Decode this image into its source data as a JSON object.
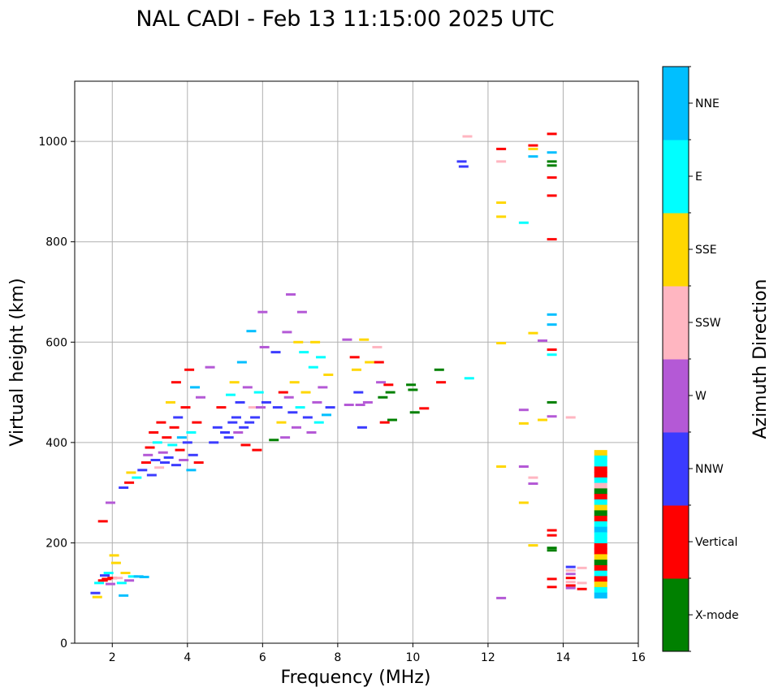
{
  "chart_data": {
    "type": "scatter",
    "title": "NAL CADI - Feb 13 11:15:00 2025 UTC",
    "xlabel": "Frequency (MHz)",
    "ylabel": "Virtual height (km)",
    "xlim": [
      1,
      16
    ],
    "ylim": [
      0,
      1120
    ],
    "xticks": [
      2,
      4,
      6,
      8,
      10,
      12,
      14,
      16
    ],
    "xtick_labels": [
      "2",
      "4",
      "6",
      "8",
      "10",
      "12",
      "14",
      "16"
    ],
    "yticks": [
      0,
      200,
      400,
      600,
      800,
      1000
    ],
    "ytick_labels": [
      "0",
      "200",
      "400",
      "600",
      "800",
      "1000"
    ],
    "grid": true,
    "colorbar": {
      "label": "Azimuth Direction",
      "categories": [
        {
          "name": "X-mode",
          "color": "#008000"
        },
        {
          "name": "Vertical",
          "color": "#ff0000"
        },
        {
          "name": "NNW",
          "color": "#3b3bff"
        },
        {
          "name": "W",
          "color": "#b459d6"
        },
        {
          "name": "SSW",
          "color": "#ffb6c1"
        },
        {
          "name": "SSE",
          "color": "#ffd700"
        },
        {
          "name": "E",
          "color": "#00ffff"
        },
        {
          "name": "NNE",
          "color": "#00bfff"
        }
      ]
    },
    "echoes": [
      {
        "f": 1.55,
        "h": 100,
        "dir": "NNW"
      },
      {
        "f": 1.6,
        "h": 92,
        "dir": "SSE"
      },
      {
        "f": 1.65,
        "h": 120,
        "dir": "E"
      },
      {
        "f": 1.75,
        "h": 125,
        "dir": "Vertical"
      },
      {
        "f": 1.8,
        "h": 135,
        "dir": "NNW"
      },
      {
        "f": 1.85,
        "h": 128,
        "dir": "Vertical"
      },
      {
        "f": 1.9,
        "h": 140,
        "dir": "E"
      },
      {
        "f": 1.95,
        "h": 118,
        "dir": "W"
      },
      {
        "f": 2.0,
        "h": 130,
        "dir": "Vertical"
      },
      {
        "f": 2.05,
        "h": 175,
        "dir": "SSE"
      },
      {
        "f": 2.1,
        "h": 160,
        "dir": "SSE"
      },
      {
        "f": 2.15,
        "h": 130,
        "dir": "SSW"
      },
      {
        "f": 2.25,
        "h": 120,
        "dir": "E"
      },
      {
        "f": 2.3,
        "h": 95,
        "dir": "NNE"
      },
      {
        "f": 2.35,
        "h": 140,
        "dir": "SSE"
      },
      {
        "f": 2.45,
        "h": 125,
        "dir": "W"
      },
      {
        "f": 2.55,
        "h": 133,
        "dir": "E"
      },
      {
        "f": 2.7,
        "h": 133,
        "dir": "NNE"
      },
      {
        "f": 2.85,
        "h": 132,
        "dir": "NNE"
      },
      {
        "f": 1.75,
        "h": 243,
        "dir": "Vertical"
      },
      {
        "f": 1.95,
        "h": 280,
        "dir": "W"
      },
      {
        "f": 2.3,
        "h": 310,
        "dir": "NNW"
      },
      {
        "f": 2.45,
        "h": 320,
        "dir": "Vertical"
      },
      {
        "f": 2.5,
        "h": 340,
        "dir": "SSE"
      },
      {
        "f": 2.65,
        "h": 330,
        "dir": "E"
      },
      {
        "f": 2.8,
        "h": 345,
        "dir": "NNW"
      },
      {
        "f": 2.9,
        "h": 360,
        "dir": "Vertical"
      },
      {
        "f": 2.95,
        "h": 375,
        "dir": "W"
      },
      {
        "f": 3.0,
        "h": 390,
        "dir": "Vertical"
      },
      {
        "f": 3.05,
        "h": 335,
        "dir": "NNW"
      },
      {
        "f": 3.1,
        "h": 420,
        "dir": "Vertical"
      },
      {
        "f": 3.15,
        "h": 365,
        "dir": "NNW"
      },
      {
        "f": 3.2,
        "h": 400,
        "dir": "E"
      },
      {
        "f": 3.25,
        "h": 350,
        "dir": "SSW"
      },
      {
        "f": 3.3,
        "h": 440,
        "dir": "Vertical"
      },
      {
        "f": 3.35,
        "h": 380,
        "dir": "W"
      },
      {
        "f": 3.4,
        "h": 360,
        "dir": "NNW"
      },
      {
        "f": 3.45,
        "h": 410,
        "dir": "Vertical"
      },
      {
        "f": 3.5,
        "h": 370,
        "dir": "NNW"
      },
      {
        "f": 3.55,
        "h": 480,
        "dir": "SSE"
      },
      {
        "f": 3.6,
        "h": 395,
        "dir": "E"
      },
      {
        "f": 3.65,
        "h": 430,
        "dir": "Vertical"
      },
      {
        "f": 3.7,
        "h": 355,
        "dir": "NNW"
      },
      {
        "f": 3.75,
        "h": 450,
        "dir": "NNW"
      },
      {
        "f": 3.8,
        "h": 385,
        "dir": "Vertical"
      },
      {
        "f": 3.85,
        "h": 410,
        "dir": "NNE"
      },
      {
        "f": 3.9,
        "h": 365,
        "dir": "W"
      },
      {
        "f": 3.95,
        "h": 470,
        "dir": "Vertical"
      },
      {
        "f": 4.0,
        "h": 400,
        "dir": "NNW"
      },
      {
        "f": 4.05,
        "h": 545,
        "dir": "Vertical"
      },
      {
        "f": 4.1,
        "h": 420,
        "dir": "E"
      },
      {
        "f": 4.15,
        "h": 375,
        "dir": "NNW"
      },
      {
        "f": 4.2,
        "h": 510,
        "dir": "NNE"
      },
      {
        "f": 4.25,
        "h": 440,
        "dir": "Vertical"
      },
      {
        "f": 4.3,
        "h": 360,
        "dir": "Vertical"
      },
      {
        "f": 4.35,
        "h": 490,
        "dir": "W"
      },
      {
        "f": 3.7,
        "h": 520,
        "dir": "Vertical"
      },
      {
        "f": 4.1,
        "h": 345,
        "dir": "NNE"
      },
      {
        "f": 4.6,
        "h": 550,
        "dir": "W"
      },
      {
        "f": 4.7,
        "h": 400,
        "dir": "NNW"
      },
      {
        "f": 4.8,
        "h": 430,
        "dir": "NNW"
      },
      {
        "f": 4.9,
        "h": 470,
        "dir": "Vertical"
      },
      {
        "f": 5.0,
        "h": 420,
        "dir": "NNW"
      },
      {
        "f": 5.1,
        "h": 410,
        "dir": "NNW"
      },
      {
        "f": 5.15,
        "h": 495,
        "dir": "E"
      },
      {
        "f": 5.2,
        "h": 440,
        "dir": "NNW"
      },
      {
        "f": 5.25,
        "h": 520,
        "dir": "SSE"
      },
      {
        "f": 5.3,
        "h": 450,
        "dir": "NNW"
      },
      {
        "f": 5.35,
        "h": 420,
        "dir": "W"
      },
      {
        "f": 5.4,
        "h": 480,
        "dir": "NNW"
      },
      {
        "f": 5.45,
        "h": 560,
        "dir": "NNE"
      },
      {
        "f": 5.5,
        "h": 430,
        "dir": "NNW"
      },
      {
        "f": 5.55,
        "h": 395,
        "dir": "Vertical"
      },
      {
        "f": 5.6,
        "h": 510,
        "dir": "W"
      },
      {
        "f": 5.65,
        "h": 440,
        "dir": "NNW"
      },
      {
        "f": 5.7,
        "h": 622,
        "dir": "NNE"
      },
      {
        "f": 5.75,
        "h": 470,
        "dir": "SSW"
      },
      {
        "f": 5.8,
        "h": 450,
        "dir": "NNW"
      },
      {
        "f": 5.85,
        "h": 385,
        "dir": "Vertical"
      },
      {
        "f": 5.9,
        "h": 500,
        "dir": "E"
      },
      {
        "f": 5.95,
        "h": 470,
        "dir": "W"
      },
      {
        "f": 6.0,
        "h": 660,
        "dir": "W"
      },
      {
        "f": 6.05,
        "h": 590,
        "dir": "W"
      },
      {
        "f": 6.1,
        "h": 480,
        "dir": "NNW"
      },
      {
        "f": 6.3,
        "h": 405,
        "dir": "X-mode"
      },
      {
        "f": 6.35,
        "h": 580,
        "dir": "NNW"
      },
      {
        "f": 6.4,
        "h": 470,
        "dir": "NNW"
      },
      {
        "f": 6.5,
        "h": 440,
        "dir": "SSE"
      },
      {
        "f": 6.55,
        "h": 500,
        "dir": "Vertical"
      },
      {
        "f": 6.6,
        "h": 410,
        "dir": "W"
      },
      {
        "f": 6.65,
        "h": 620,
        "dir": "W"
      },
      {
        "f": 6.7,
        "h": 490,
        "dir": "W"
      },
      {
        "f": 6.75,
        "h": 695,
        "dir": "W"
      },
      {
        "f": 6.8,
        "h": 460,
        "dir": "NNW"
      },
      {
        "f": 6.85,
        "h": 520,
        "dir": "SSE"
      },
      {
        "f": 6.9,
        "h": 430,
        "dir": "W"
      },
      {
        "f": 6.95,
        "h": 600,
        "dir": "SSE"
      },
      {
        "f": 7.0,
        "h": 470,
        "dir": "E"
      },
      {
        "f": 7.05,
        "h": 660,
        "dir": "W"
      },
      {
        "f": 7.1,
        "h": 580,
        "dir": "E"
      },
      {
        "f": 7.15,
        "h": 500,
        "dir": "SSE"
      },
      {
        "f": 7.2,
        "h": 450,
        "dir": "NNW"
      },
      {
        "f": 7.3,
        "h": 420,
        "dir": "W"
      },
      {
        "f": 7.35,
        "h": 550,
        "dir": "E"
      },
      {
        "f": 7.4,
        "h": 600,
        "dir": "SSE"
      },
      {
        "f": 7.45,
        "h": 480,
        "dir": "W"
      },
      {
        "f": 7.5,
        "h": 440,
        "dir": "E"
      },
      {
        "f": 7.55,
        "h": 570,
        "dir": "E"
      },
      {
        "f": 7.6,
        "h": 510,
        "dir": "W"
      },
      {
        "f": 7.7,
        "h": 455,
        "dir": "NNE"
      },
      {
        "f": 7.75,
        "h": 535,
        "dir": "SSE"
      },
      {
        "f": 7.8,
        "h": 470,
        "dir": "NNW"
      },
      {
        "f": 8.25,
        "h": 605,
        "dir": "W"
      },
      {
        "f": 8.3,
        "h": 475,
        "dir": "W"
      },
      {
        "f": 8.45,
        "h": 570,
        "dir": "Vertical"
      },
      {
        "f": 8.5,
        "h": 545,
        "dir": "SSE"
      },
      {
        "f": 8.55,
        "h": 500,
        "dir": "NNW"
      },
      {
        "f": 8.6,
        "h": 475,
        "dir": "W"
      },
      {
        "f": 8.65,
        "h": 430,
        "dir": "NNW"
      },
      {
        "f": 8.7,
        "h": 605,
        "dir": "SSE"
      },
      {
        "f": 8.8,
        "h": 480,
        "dir": "W"
      },
      {
        "f": 8.85,
        "h": 560,
        "dir": "SSE"
      },
      {
        "f": 9.05,
        "h": 590,
        "dir": "SSW"
      },
      {
        "f": 9.1,
        "h": 560,
        "dir": "Vertical"
      },
      {
        "f": 9.15,
        "h": 520,
        "dir": "W"
      },
      {
        "f": 9.2,
        "h": 490,
        "dir": "X-mode"
      },
      {
        "f": 9.25,
        "h": 440,
        "dir": "Vertical"
      },
      {
        "f": 9.35,
        "h": 515,
        "dir": "Vertical"
      },
      {
        "f": 9.4,
        "h": 500,
        "dir": "X-mode"
      },
      {
        "f": 9.45,
        "h": 445,
        "dir": "X-mode"
      },
      {
        "f": 9.95,
        "h": 515,
        "dir": "X-mode"
      },
      {
        "f": 10.0,
        "h": 505,
        "dir": "X-mode"
      },
      {
        "f": 10.05,
        "h": 460,
        "dir": "X-mode"
      },
      {
        "f": 10.3,
        "h": 468,
        "dir": "Vertical"
      },
      {
        "f": 10.7,
        "h": 545,
        "dir": "X-mode"
      },
      {
        "f": 10.75,
        "h": 520,
        "dir": "Vertical"
      },
      {
        "f": 11.3,
        "h": 960,
        "dir": "NNW"
      },
      {
        "f": 11.35,
        "h": 950,
        "dir": "NNW"
      },
      {
        "f": 11.45,
        "h": 1010,
        "dir": "SSW"
      },
      {
        "f": 11.5,
        "h": 528,
        "dir": "E"
      },
      {
        "f": 12.35,
        "h": 985,
        "dir": "Vertical"
      },
      {
        "f": 12.35,
        "h": 960,
        "dir": "SSW"
      },
      {
        "f": 12.35,
        "h": 878,
        "dir": "SSE"
      },
      {
        "f": 12.35,
        "h": 850,
        "dir": "SSE"
      },
      {
        "f": 12.35,
        "h": 598,
        "dir": "SSE"
      },
      {
        "f": 12.35,
        "h": 352,
        "dir": "SSE"
      },
      {
        "f": 12.35,
        "h": 90,
        "dir": "W"
      },
      {
        "f": 12.95,
        "h": 838,
        "dir": "E"
      },
      {
        "f": 12.95,
        "h": 465,
        "dir": "W"
      },
      {
        "f": 12.95,
        "h": 438,
        "dir": "SSE"
      },
      {
        "f": 12.95,
        "h": 352,
        "dir": "W"
      },
      {
        "f": 12.95,
        "h": 280,
        "dir": "SSE"
      },
      {
        "f": 13.2,
        "h": 992,
        "dir": "Vertical"
      },
      {
        "f": 13.2,
        "h": 985,
        "dir": "SSE"
      },
      {
        "f": 13.2,
        "h": 970,
        "dir": "NNE"
      },
      {
        "f": 13.2,
        "h": 618,
        "dir": "SSE"
      },
      {
        "f": 13.2,
        "h": 330,
        "dir": "SSW"
      },
      {
        "f": 13.2,
        "h": 318,
        "dir": "W"
      },
      {
        "f": 13.2,
        "h": 195,
        "dir": "SSE"
      },
      {
        "f": 13.45,
        "h": 603,
        "dir": "W"
      },
      {
        "f": 13.45,
        "h": 445,
        "dir": "SSE"
      },
      {
        "f": 13.7,
        "h": 1015,
        "dir": "Vertical"
      },
      {
        "f": 13.7,
        "h": 978,
        "dir": "NNE"
      },
      {
        "f": 13.7,
        "h": 960,
        "dir": "X-mode"
      },
      {
        "f": 13.7,
        "h": 952,
        "dir": "X-mode"
      },
      {
        "f": 13.7,
        "h": 928,
        "dir": "Vertical"
      },
      {
        "f": 13.7,
        "h": 892,
        "dir": "Vertical"
      },
      {
        "f": 13.7,
        "h": 805,
        "dir": "Vertical"
      },
      {
        "f": 13.7,
        "h": 655,
        "dir": "NNE"
      },
      {
        "f": 13.7,
        "h": 635,
        "dir": "NNE"
      },
      {
        "f": 13.7,
        "h": 585,
        "dir": "Vertical"
      },
      {
        "f": 13.7,
        "h": 575,
        "dir": "E"
      },
      {
        "f": 13.7,
        "h": 480,
        "dir": "X-mode"
      },
      {
        "f": 13.7,
        "h": 452,
        "dir": "W"
      },
      {
        "f": 13.7,
        "h": 225,
        "dir": "Vertical"
      },
      {
        "f": 13.7,
        "h": 215,
        "dir": "Vertical"
      },
      {
        "f": 13.7,
        "h": 190,
        "dir": "X-mode"
      },
      {
        "f": 13.7,
        "h": 185,
        "dir": "X-mode"
      },
      {
        "f": 13.7,
        "h": 128,
        "dir": "Vertical"
      },
      {
        "f": 13.7,
        "h": 112,
        "dir": "Vertical"
      },
      {
        "f": 14.2,
        "h": 450,
        "dir": "SSW"
      },
      {
        "f": 14.2,
        "h": 152,
        "dir": "NNW"
      },
      {
        "f": 14.2,
        "h": 145,
        "dir": "SSW"
      },
      {
        "f": 14.2,
        "h": 138,
        "dir": "W"
      },
      {
        "f": 14.2,
        "h": 130,
        "dir": "Vertical"
      },
      {
        "f": 14.2,
        "h": 122,
        "dir": "SSW"
      },
      {
        "f": 14.2,
        "h": 115,
        "dir": "Vertical"
      },
      {
        "f": 14.2,
        "h": 110,
        "dir": "W"
      },
      {
        "f": 14.5,
        "h": 150,
        "dir": "SSW"
      },
      {
        "f": 14.5,
        "h": 120,
        "dir": "SSW"
      },
      {
        "f": 14.5,
        "h": 108,
        "dir": "Vertical"
      }
    ],
    "columns": [
      {
        "f": 15.0,
        "h_min": 90,
        "h_max": 385,
        "bands": [
          "SSE",
          "E",
          "E",
          "Vertical",
          "Vertical",
          "E",
          "SSW",
          "X-mode",
          "Vertical",
          "E",
          "SSE",
          "X-mode",
          "Vertical",
          "E",
          "NNE",
          "E",
          "E",
          "Vertical",
          "Vertical",
          "SSE",
          "X-mode",
          "Vertical",
          "E",
          "Vertical",
          "SSE",
          "E",
          "NNE"
        ]
      }
    ]
  }
}
